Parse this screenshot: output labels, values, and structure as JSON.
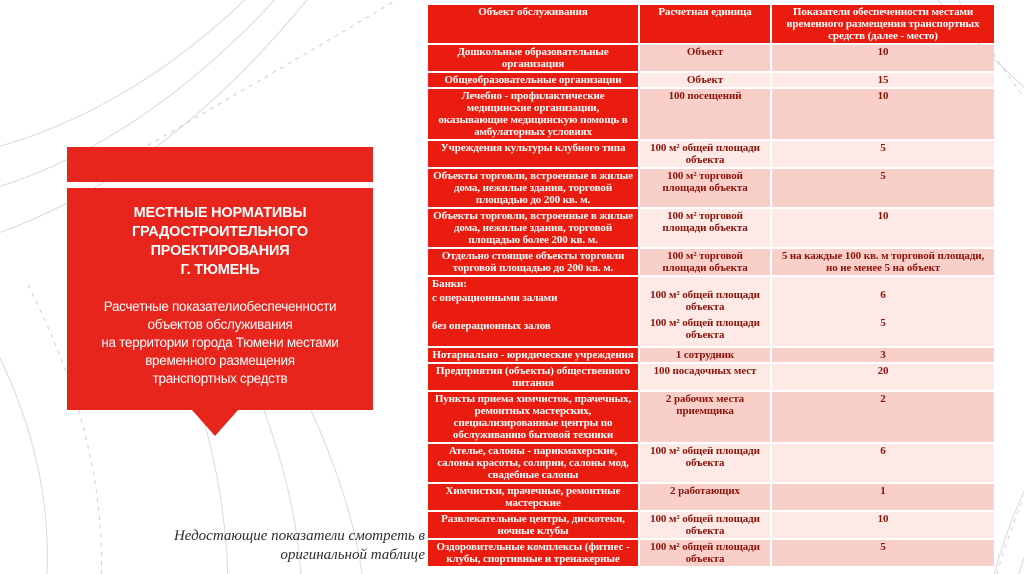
{
  "colors": {
    "accent": "#e7251d",
    "tablered": "#ea1c10",
    "rowdark": "#f8cfc9",
    "rowlight": "#fdeae6",
    "celltext": "#8e130a"
  },
  "banner": {
    "title": "МЕСТНЫЕ НОРМАТИВЫ\nГРАДОСТРОИТЕЛЬНОГО\nПРОЕКТИРОВАНИЯ\nГ. ТЮМЕНЬ",
    "subtitle": "Расчетные показателиобеспеченности\nобъектов обслуживания\nна территории города Тюмени местами\nвременного размещения\nтранспортных средств"
  },
  "footnote": "Недостающие показатели смотреть в\nоригинальной таблице",
  "table": {
    "headers": [
      "Объект обслуживания",
      "Расчетная единица",
      "Показатели обеспеченности местами временного размещения транспортных средств (далее - место)"
    ],
    "rows": [
      {
        "object": "Дошкольные образовательные организация",
        "unit": "Объект",
        "value": "10"
      },
      {
        "object": "Общеобразовательные организации",
        "unit": "Объект",
        "value": "15"
      },
      {
        "object": "Лечебно - профилактические медицинские организации, оказывающие медицинскую помощь в амбулаторных условиях",
        "unit": "100 посещений",
        "value": "10"
      },
      {
        "object": "Учреждения культуры клубного типа",
        "unit": "100 м² общей площади объекта",
        "value": "5"
      },
      {
        "object": "Объекты торговли, встроенные в жилые дома, нежилые здания, торговой площадью до 200 кв. м.",
        "unit": "100 м² торговой площади объекта",
        "value": "5"
      },
      {
        "object": "Объекты торговли, встроенные в жилые дома, нежилые здания, торговой площадью более 200 кв. м.",
        "unit": "100 м² торговой площади объекта",
        "value": "10"
      },
      {
        "object": "Отдельно стоящие объекты торговли торговой площадью до 200 кв. м.",
        "unit": "100 м² торговой площади объекта",
        "value": "5 на каждые 100 кв. м торговой площади, но не менее 5 на объект"
      },
      {
        "object_title": "Банки:",
        "object_items": [
          "с операционными залами",
          "без операционных залов"
        ],
        "units": [
          "100 м² общей площади объекта",
          "100 м² общей площади объекта"
        ],
        "values": [
          "6",
          "5"
        ]
      },
      {
        "object": "Нотариально - юридические учреждения",
        "unit": "1 сотрудник",
        "value": "3"
      },
      {
        "object": "Предприятия (объекты) общественного питания",
        "unit": "100 посадочных мест",
        "value": "20"
      },
      {
        "object": "Пункты приема химчисток, прачечных, ремонтных мастерских, специализированные центры по обслуживанию бытовой техники",
        "unit": "2 рабочих места приемщика",
        "value": "2"
      },
      {
        "object": "Ателье, салоны - парикмахерские, салоны красоты, солярии, салоны мод, свадебные салоны",
        "unit": "100 м² общей площади объекта",
        "value": "6"
      },
      {
        "object": "Химчистки, прачечные, ремонтные мастерские",
        "unit": "2 работающих",
        "value": "1"
      },
      {
        "object": "Развлекательные центры, дискотеки, ночные клубы",
        "unit": "100 м² общей площади объекта",
        "value": "10"
      },
      {
        "object": "Оздоровительные комплексы (фитнес - клубы, спортивные и тренажерные",
        "unit": "100 м² общей площади объекта",
        "value": "5"
      }
    ]
  }
}
